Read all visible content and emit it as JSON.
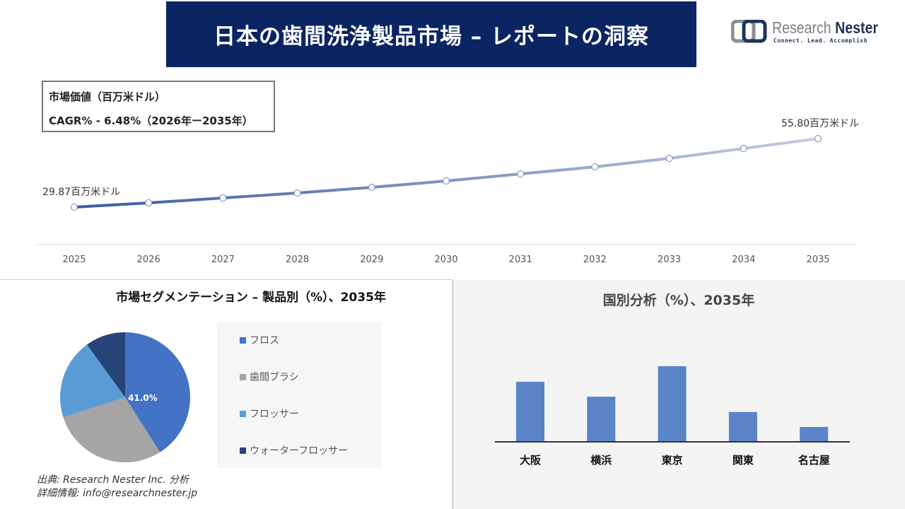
{
  "header": {
    "title": "日本の歯間洗浄製品市場 – レポートの洞察"
  },
  "logo": {
    "name_part1": "Research",
    "name_part2": "Nester",
    "tagline": "Connect. Lead. Accomplish"
  },
  "info": {
    "line1": "市場価値（百万米ドル）",
    "line2": "CAGR% - 6.48%（2026年ー2035年）"
  },
  "chart_data": [
    {
      "type": "line",
      "x": [
        "2025",
        "2026",
        "2027",
        "2028",
        "2029",
        "2030",
        "2031",
        "2032",
        "2033",
        "2034",
        "2035"
      ],
      "values": [
        29.87,
        31.47,
        33.34,
        35.22,
        37.35,
        39.76,
        42.43,
        45.11,
        48.31,
        52.06,
        55.8
      ],
      "annotations": {
        "first": "29.87百万米ドル",
        "last": "55.80百万米ドル"
      },
      "colors": {
        "start": "#3a5ba0",
        "end": "#c5cce0"
      },
      "grid": false
    },
    {
      "type": "pie",
      "title": "市場セグメンテーション – 製品別（%）、2035年",
      "categories": [
        "フロス",
        "歯間ブラシ",
        "フロッサー",
        "ウォーターフロッサー"
      ],
      "values": [
        41.0,
        29.0,
        20.0,
        10.0
      ],
      "colors": [
        "#4472c4",
        "#a5a5a5",
        "#5b9bd5",
        "#264478"
      ],
      "data_label": "41.0%",
      "legend": "right"
    },
    {
      "type": "bar",
      "title": "国別分析（%）、2035年",
      "categories": [
        "大阪",
        "横浜",
        "東京",
        "関東",
        "名古屋"
      ],
      "values": [
        26.6,
        20.0,
        33.5,
        13.2,
        6.6
      ],
      "color": "#5b84c8",
      "grid": false
    }
  ],
  "source": {
    "line1": "出典: Research Nester Inc. 分析",
    "line2": "詳細情報: info@researchnester.jp"
  }
}
